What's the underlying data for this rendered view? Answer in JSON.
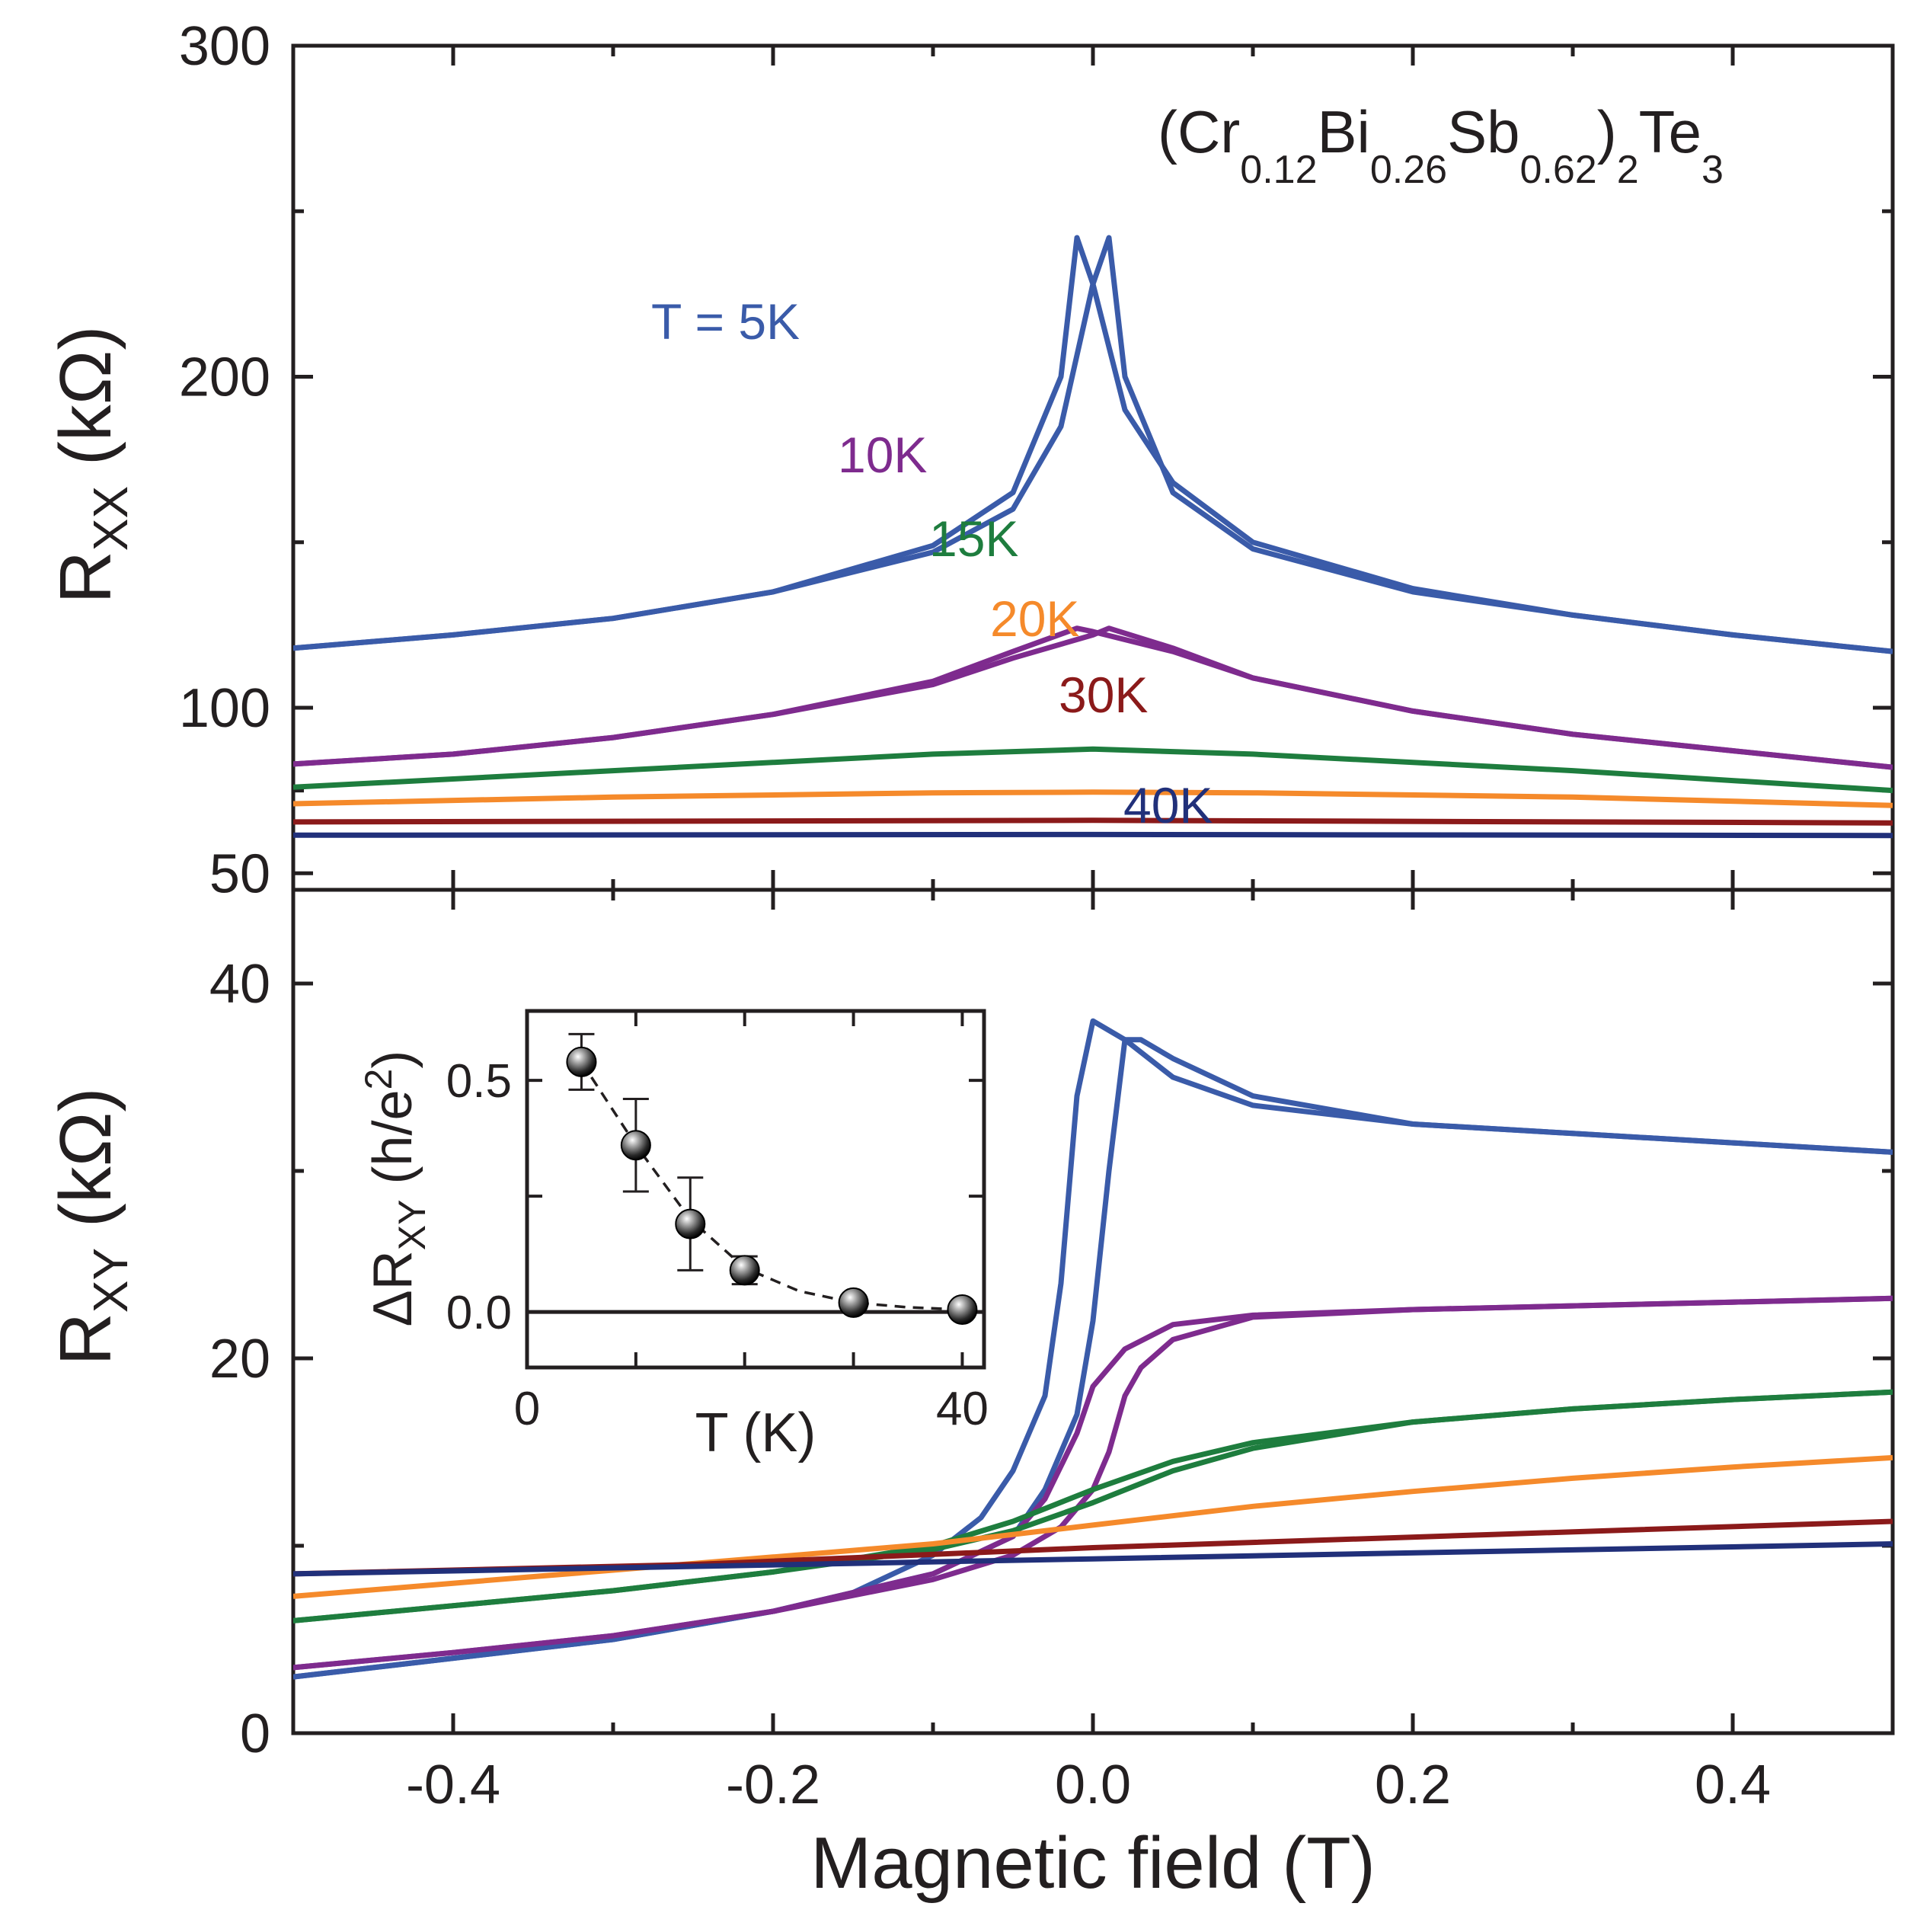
{
  "chart_data": [
    {
      "id": "top",
      "type": "line",
      "title": "",
      "formula": {
        "parts": [
          {
            "t": "(Cr",
            "sub": false
          },
          {
            "t": "0.12",
            "sub": true
          },
          {
            "t": "Bi",
            "sub": false
          },
          {
            "t": "0.26",
            "sub": true
          },
          {
            "t": "Sb",
            "sub": false
          },
          {
            "t": "0.62",
            "sub": true
          },
          {
            "t": ")",
            "sub": false
          },
          {
            "t": "2",
            "sub": true
          },
          {
            "t": "Te",
            "sub": false
          },
          {
            "t": "3",
            "sub": true
          }
        ]
      },
      "ylabel": {
        "main": "R",
        "sub": "XX",
        "rest": " (kΩ)"
      },
      "xlim": [
        -0.5,
        0.5
      ],
      "ylim": [
        45,
        300
      ],
      "yscale": "linear",
      "yticks": [
        50,
        100,
        200,
        300
      ],
      "yticks_labels": [
        "50",
        "100",
        "200",
        "300"
      ],
      "series": [
        {
          "name": "T = 5K",
          "label": "T = 5K",
          "color": "#3a5ba9",
          "sweeps": [
            {
              "x": [
                -0.5,
                -0.4,
                -0.3,
                -0.2,
                -0.1,
                -0.05,
                -0.02,
                -0.01,
                0.0,
                0.02,
                0.05,
                0.1,
                0.2,
                0.3,
                0.4,
                0.5
              ],
              "y": [
                118,
                122,
                127,
                135,
                149,
                165,
                200,
                242,
                228,
                190,
                168,
                150,
                136,
                128,
                122,
                117
              ]
            },
            {
              "x": [
                -0.5,
                -0.4,
                -0.3,
                -0.2,
                -0.1,
                -0.05,
                -0.02,
                0.0,
                0.01,
                0.02,
                0.05,
                0.1,
                0.2,
                0.3,
                0.4,
                0.5
              ],
              "y": [
                118,
                122,
                127,
                135,
                147,
                160,
                185,
                228,
                242,
                200,
                165,
                148,
                135,
                128,
                122,
                117
              ]
            }
          ]
        },
        {
          "name": "10K",
          "label": "10K",
          "color": "#7e2b8e",
          "sweeps": [
            {
              "x": [
                -0.5,
                -0.4,
                -0.3,
                -0.2,
                -0.1,
                -0.05,
                -0.01,
                0.0,
                0.05,
                0.1,
                0.2,
                0.3,
                0.4,
                0.5
              ],
              "y": [
                83,
                86,
                91,
                98,
                108,
                117,
                124,
                123,
                117,
                109,
                99,
                92,
                87,
                82
              ]
            },
            {
              "x": [
                -0.5,
                -0.4,
                -0.3,
                -0.2,
                -0.1,
                -0.05,
                0.0,
                0.01,
                0.05,
                0.1,
                0.2,
                0.3,
                0.4,
                0.5
              ],
              "y": [
                83,
                86,
                91,
                98,
                107,
                115,
                122,
                124,
                118,
                109,
                99,
                92,
                87,
                82
              ]
            }
          ]
        },
        {
          "name": "15K",
          "label": "15K",
          "color": "#1e7d3e",
          "sweeps": [
            {
              "x": [
                -0.5,
                -0.3,
                -0.1,
                0.0,
                0.1,
                0.3,
                0.5
              ],
              "y": [
                76,
                81,
                86,
                87.5,
                86,
                81,
                75
              ]
            }
          ]
        },
        {
          "name": "20K",
          "label": "20K",
          "color": "#f58a2b",
          "sweeps": [
            {
              "x": [
                -0.5,
                -0.3,
                -0.1,
                0.0,
                0.1,
                0.3,
                0.5
              ],
              "y": [
                71,
                73,
                74.3,
                74.5,
                74.3,
                73,
                70.5
              ]
            }
          ]
        },
        {
          "name": "30K",
          "label": "30K",
          "color": "#8b1a1a",
          "sweeps": [
            {
              "x": [
                -0.5,
                0.0,
                0.5
              ],
              "y": [
                65.5,
                66,
                65.2
              ]
            }
          ]
        },
        {
          "name": "40K",
          "label": "40K",
          "color": "#21307a",
          "sweeps": [
            {
              "x": [
                -0.5,
                0.0,
                0.5
              ],
              "y": [
                61.5,
                61.7,
                61.4
              ]
            }
          ]
        }
      ]
    },
    {
      "id": "bottom",
      "type": "line",
      "title": "",
      "xlabel": "Magnetic field (T)",
      "ylabel": {
        "main": "R",
        "sub": "XY",
        "rest": " (kΩ)"
      },
      "xlim": [
        -0.5,
        0.5
      ],
      "ylim": [
        0,
        45
      ],
      "xticks": [
        -0.4,
        -0.2,
        0.0,
        0.2,
        0.4
      ],
      "xticks_labels": [
        "-0.4",
        "-0.2",
        "0.0",
        "0.2",
        "0.4"
      ],
      "yticks": [
        0,
        20,
        40
      ],
      "yticks_labels": [
        "0",
        "20",
        "40"
      ],
      "series": [
        {
          "name": "5K",
          "color": "#3a5ba9",
          "sweeps": [
            {
              "x": [
                -0.5,
                -0.4,
                -0.3,
                -0.2,
                -0.15,
                -0.1,
                -0.07,
                -0.05,
                -0.03,
                -0.02,
                -0.01,
                0.0,
                0.02,
                0.05,
                0.1,
                0.2,
                0.3,
                0.4,
                0.5
              ],
              "y": [
                3.0,
                4.0,
                5.0,
                6.5,
                7.5,
                9.5,
                11.5,
                14,
                18,
                24,
                34,
                38,
                37,
                35,
                33.5,
                32.5,
                32,
                31.5,
                31
              ]
            },
            {
              "x": [
                -0.5,
                -0.4,
                -0.3,
                -0.2,
                -0.1,
                -0.05,
                -0.03,
                -0.01,
                0.0,
                0.01,
                0.02,
                0.03,
                0.05,
                0.1,
                0.2,
                0.3,
                0.4,
                0.5
              ],
              "y": [
                3.0,
                4.0,
                5.0,
                6.5,
                8.5,
                10.5,
                13,
                17,
                22,
                30,
                37,
                37,
                36,
                34,
                32.5,
                32,
                31.5,
                31
              ]
            }
          ]
        },
        {
          "name": "10K",
          "color": "#7e2b8e",
          "sweeps": [
            {
              "x": [
                -0.5,
                -0.4,
                -0.3,
                -0.2,
                -0.1,
                -0.05,
                -0.03,
                -0.01,
                0.0,
                0.02,
                0.05,
                0.1,
                0.2,
                0.3,
                0.4,
                0.5
              ],
              "y": [
                3.5,
                4.3,
                5.2,
                6.5,
                8.5,
                10.5,
                12.5,
                16,
                18.5,
                20.5,
                21.8,
                22.3,
                22.6,
                22.8,
                23,
                23.2
              ]
            },
            {
              "x": [
                -0.5,
                -0.4,
                -0.3,
                -0.2,
                -0.1,
                -0.05,
                -0.02,
                0.0,
                0.01,
                0.02,
                0.03,
                0.05,
                0.1,
                0.2,
                0.3,
                0.4,
                0.5
              ],
              "y": [
                3.5,
                4.3,
                5.2,
                6.5,
                8.2,
                9.5,
                11,
                13,
                15,
                18,
                19.5,
                21,
                22.2,
                22.6,
                22.8,
                23,
                23.2
              ]
            }
          ]
        },
        {
          "name": "15K",
          "color": "#1e7d3e",
          "sweeps": [
            {
              "x": [
                -0.5,
                -0.4,
                -0.3,
                -0.2,
                -0.1,
                -0.05,
                0.0,
                0.05,
                0.1,
                0.2,
                0.3,
                0.4,
                0.5
              ],
              "y": [
                6.0,
                6.8,
                7.6,
                8.6,
                10.0,
                11.3,
                13,
                14.5,
                15.5,
                16.6,
                17.3,
                17.8,
                18.2
              ]
            },
            {
              "x": [
                -0.5,
                -0.4,
                -0.3,
                -0.2,
                -0.1,
                -0.05,
                0.0,
                0.05,
                0.1,
                0.2,
                0.3,
                0.4,
                0.5
              ],
              "y": [
                6.0,
                6.8,
                7.6,
                8.6,
                9.8,
                10.8,
                12.3,
                14.0,
                15.2,
                16.6,
                17.3,
                17.8,
                18.2
              ]
            }
          ]
        },
        {
          "name": "20K",
          "color": "#f58a2b",
          "sweeps": [
            {
              "x": [
                -0.5,
                -0.4,
                -0.3,
                -0.2,
                -0.1,
                0.0,
                0.1,
                0.2,
                0.3,
                0.4,
                0.5
              ],
              "y": [
                7.3,
                8.0,
                8.7,
                9.4,
                10.1,
                11.1,
                12.1,
                12.9,
                13.6,
                14.2,
                14.7
              ]
            }
          ]
        },
        {
          "name": "30K",
          "color": "#8b1a1a",
          "sweeps": [
            {
              "x": [
                -0.5,
                -0.25,
                0.0,
                0.25,
                0.5
              ],
              "y": [
                8.5,
                9.0,
                9.9,
                10.6,
                11.3
              ]
            }
          ]
        },
        {
          "name": "40K",
          "color": "#21307a",
          "sweeps": [
            {
              "x": [
                -0.5,
                -0.25,
                0.0,
                0.25,
                0.5
              ],
              "y": [
                8.5,
                8.9,
                9.3,
                9.7,
                10.1
              ]
            }
          ]
        }
      ]
    },
    {
      "id": "inset",
      "type": "scatter",
      "xlabel": "T (K)",
      "ylabel": {
        "pre": "ΔR",
        "sub": "XY",
        "mid": " (h/e",
        "sup": "2",
        "post": ")"
      },
      "xlim": [
        0,
        42
      ],
      "ylim": [
        -0.12,
        0.65
      ],
      "xticks": [
        0,
        40
      ],
      "xticks_labels": [
        "0",
        "40"
      ],
      "yticks": [
        0.0,
        0.5
      ],
      "yticks_labels": [
        "0.0",
        "0.5"
      ],
      "reference_line": 0.0,
      "points": [
        {
          "x": 5,
          "y": 0.54,
          "err": 0.06
        },
        {
          "x": 10,
          "y": 0.36,
          "err": 0.1
        },
        {
          "x": 15,
          "y": 0.19,
          "err": 0.1
        },
        {
          "x": 20,
          "y": 0.09,
          "err": 0.03
        },
        {
          "x": 30,
          "y": 0.02,
          "err": 0.0
        },
        {
          "x": 40,
          "y": 0.005,
          "err": 0.0
        }
      ],
      "trend": {
        "x": [
          5,
          10,
          15,
          20,
          25,
          30,
          35,
          40
        ],
        "y": [
          0.54,
          0.36,
          0.2,
          0.095,
          0.045,
          0.02,
          0.01,
          0.005
        ]
      }
    }
  ]
}
